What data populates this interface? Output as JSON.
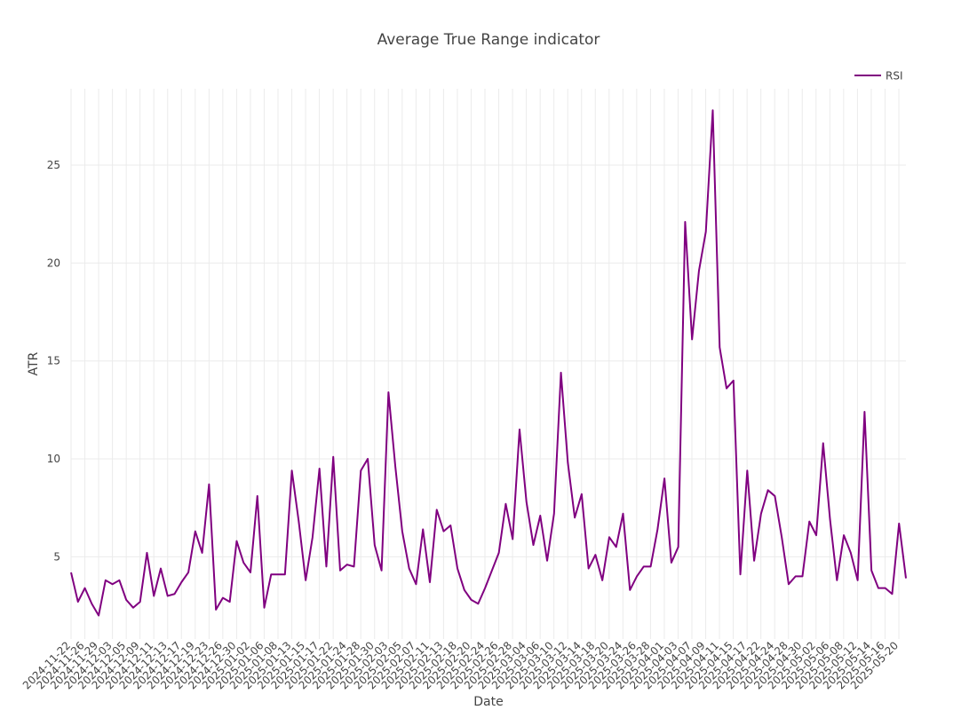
{
  "chart_data": {
    "type": "line",
    "title": "Average True Range indicator",
    "xlabel": "Date",
    "ylabel": "ATR",
    "ylim": [
      0.8,
      28.9
    ],
    "yticks": [
      5,
      10,
      15,
      20,
      25
    ],
    "grid": true,
    "legend_position": "top-right",
    "colors": {
      "series": "#800080"
    },
    "xtick_labels": [
      "2024-11-22",
      "2024-11-26",
      "2024-11-29",
      "2024-12-03",
      "2024-12-05",
      "2024-12-09",
      "2024-12-11",
      "2024-12-13",
      "2024-12-17",
      "2024-12-19",
      "2024-12-23",
      "2024-12-26",
      "2024-12-30",
      "2025-01-02",
      "2025-01-06",
      "2025-01-08",
      "2025-01-13",
      "2025-01-15",
      "2025-01-17",
      "2025-01-22",
      "2025-01-24",
      "2025-01-28",
      "2025-01-30",
      "2025-02-03",
      "2025-02-05",
      "2025-02-07",
      "2025-02-11",
      "2025-02-13",
      "2025-02-18",
      "2025-02-20",
      "2025-02-24",
      "2025-02-26",
      "2025-02-28",
      "2025-03-04",
      "2025-03-06",
      "2025-03-10",
      "2025-03-12",
      "2025-03-14",
      "2025-03-18",
      "2025-03-20",
      "2025-03-24",
      "2025-03-26",
      "2025-03-28",
      "2025-04-01",
      "2025-04-03",
      "2025-04-07",
      "2025-04-09",
      "2025-04-11",
      "2025-04-15",
      "2025-04-17",
      "2025-04-22",
      "2025-04-24",
      "2025-04-28",
      "2025-04-30",
      "2025-05-02",
      "2025-05-06",
      "2025-05-08",
      "2025-05-12",
      "2025-05-14",
      "2025-05-16",
      "2025-05-20"
    ],
    "series": [
      {
        "name": "RSI",
        "values": [
          4.2,
          2.7,
          3.4,
          2.6,
          2.0,
          3.8,
          3.6,
          3.8,
          2.8,
          2.4,
          2.7,
          5.2,
          3.0,
          4.4,
          3.0,
          3.1,
          3.7,
          4.2,
          6.3,
          5.2,
          8.7,
          2.3,
          2.9,
          2.7,
          5.8,
          4.7,
          4.2,
          8.1,
          2.4,
          4.1,
          4.1,
          4.1,
          9.4,
          6.8,
          3.8,
          6.0,
          9.5,
          4.5,
          10.1,
          4.3,
          4.6,
          4.5,
          9.4,
          10.0,
          5.6,
          4.3,
          13.4,
          9.6,
          6.3,
          4.4,
          3.6,
          6.4,
          3.7,
          7.4,
          6.3,
          6.6,
          4.4,
          3.3,
          2.8,
          2.6,
          3.4,
          4.3,
          5.2,
          7.7,
          5.9,
          11.5,
          7.8,
          5.6,
          7.1,
          4.8,
          7.2,
          14.4,
          9.8,
          7.0,
          8.2,
          4.4,
          5.1,
          3.8,
          6.0,
          5.5,
          7.2,
          3.3,
          4.0,
          4.5,
          4.5,
          6.4,
          9.0,
          4.7,
          5.5,
          22.1,
          16.1,
          19.6,
          21.6,
          27.8,
          15.7,
          13.6,
          14.0,
          4.1,
          9.4,
          4.8,
          7.2,
          8.4,
          8.1,
          6.0,
          3.6,
          4.0,
          4.0,
          6.8,
          6.1,
          10.8,
          6.9,
          3.8,
          6.1,
          5.2,
          3.8,
          12.4,
          4.3,
          3.4,
          3.4,
          3.1,
          6.7,
          3.9
        ]
      }
    ]
  }
}
